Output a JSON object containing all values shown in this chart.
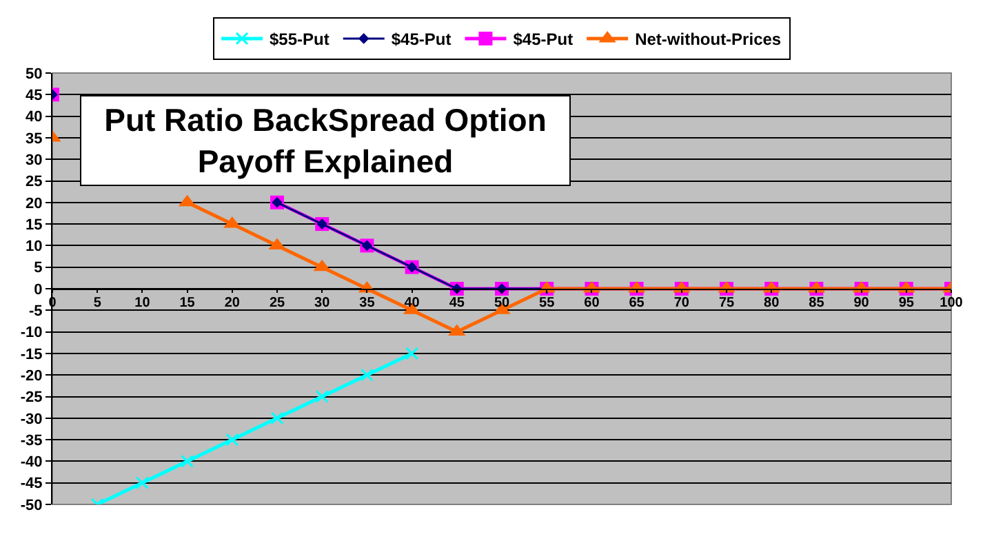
{
  "chart_data": {
    "type": "line",
    "title": "Put Ratio BackSpread Option Payoff Explained",
    "x": [
      0,
      5,
      10,
      15,
      20,
      25,
      30,
      35,
      40,
      45,
      50,
      55,
      60,
      65,
      70,
      75,
      80,
      85,
      90,
      95,
      100
    ],
    "series": [
      {
        "name": "$55-Put",
        "color": "#00ffff",
        "marker": "cross",
        "values": [
          null,
          -50,
          -45,
          -40,
          -35,
          -30,
          -25,
          -20,
          -15,
          null,
          null,
          null,
          null,
          null,
          null,
          null,
          null,
          null,
          null,
          null,
          null
        ]
      },
      {
        "name": "$45-Put",
        "color": "#000080",
        "marker": "diamond",
        "values": [
          45,
          null,
          null,
          null,
          null,
          20,
          15,
          10,
          5,
          0,
          0,
          0,
          null,
          null,
          null,
          null,
          null,
          null,
          null,
          null,
          null
        ]
      },
      {
        "name": "$45-Put",
        "color": "#ff00ff",
        "marker": "square",
        "values": [
          45,
          null,
          null,
          null,
          null,
          20,
          15,
          10,
          5,
          0,
          0,
          0,
          0,
          0,
          0,
          0,
          0,
          0,
          0,
          0,
          0
        ]
      },
      {
        "name": "Net-without-Prices",
        "color": "#ff6600",
        "marker": "triangle",
        "values": [
          35,
          null,
          null,
          20,
          15,
          10,
          5,
          0,
          -5,
          -10,
          -5,
          0,
          0,
          0,
          0,
          0,
          0,
          0,
          0,
          0,
          0
        ]
      }
    ],
    "xlim": [
      0,
      100
    ],
    "xticks": [
      0,
      5,
      10,
      15,
      20,
      25,
      30,
      35,
      40,
      45,
      50,
      55,
      60,
      65,
      70,
      75,
      80,
      85,
      90,
      95,
      100
    ],
    "ylim": [
      -50,
      50
    ],
    "yticks": [
      -50,
      -45,
      -40,
      -35,
      -30,
      -25,
      -20,
      -15,
      -10,
      -5,
      0,
      5,
      10,
      15,
      20,
      25,
      30,
      35,
      40,
      45,
      50
    ],
    "grid": "y",
    "legend": "top",
    "line_style": "solid"
  }
}
